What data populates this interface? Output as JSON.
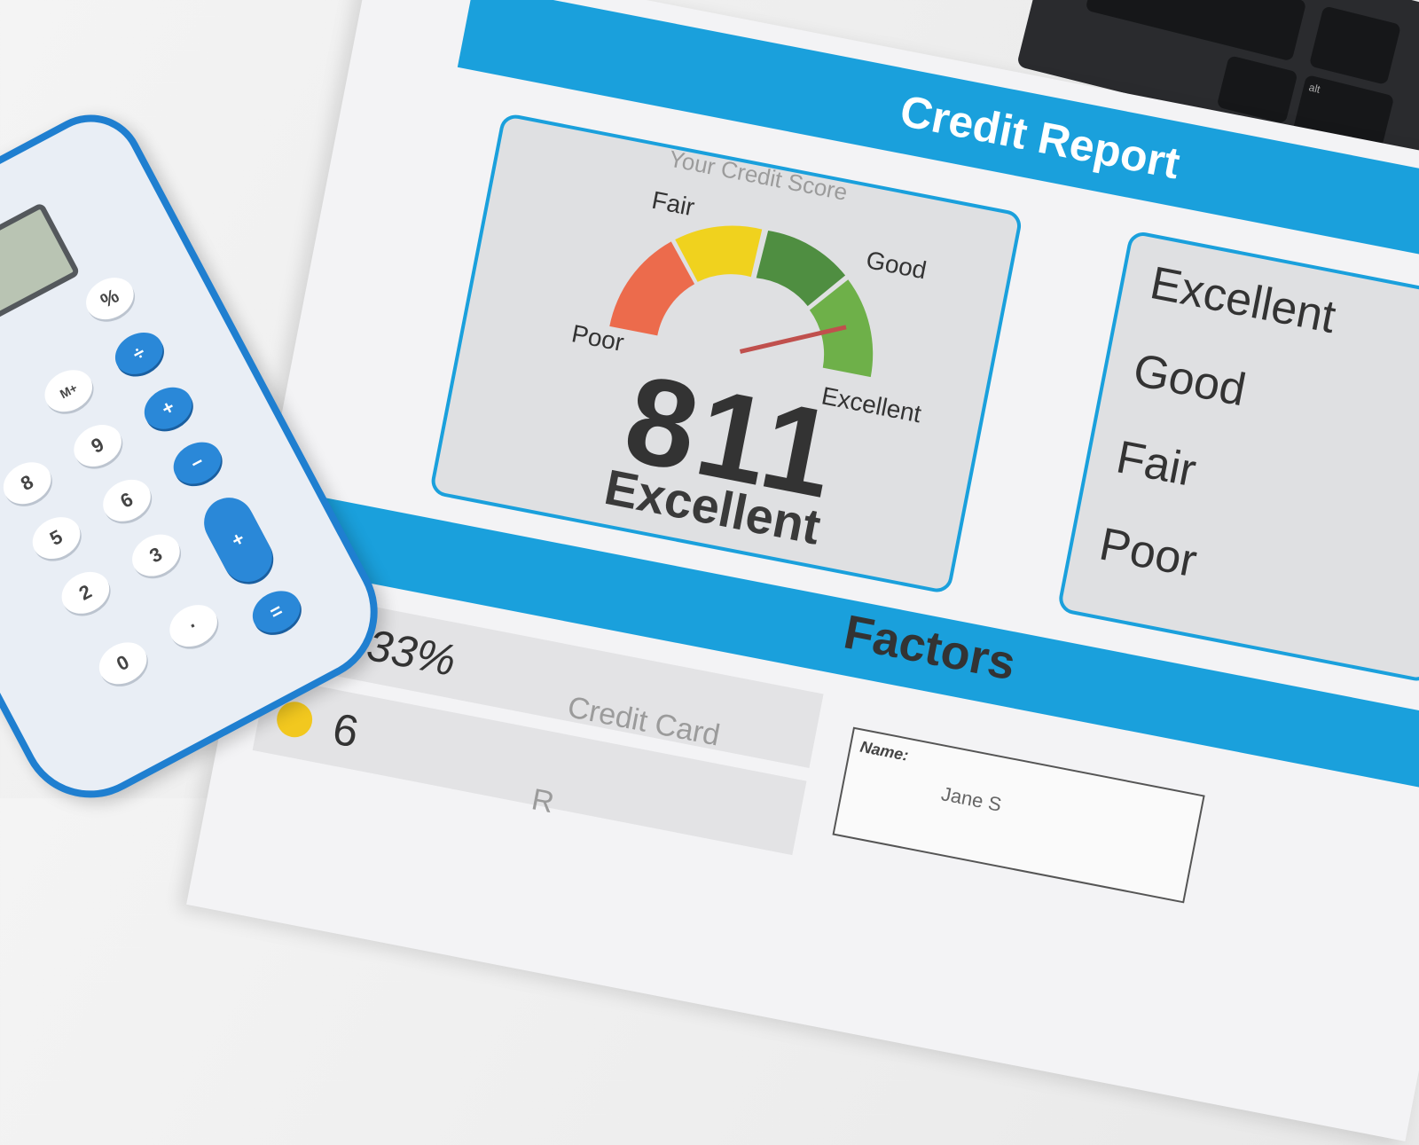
{
  "report": {
    "title": "Credit Report",
    "score_caption": "Your Credit Score",
    "score": "811",
    "rating": "Excellent",
    "gauge_labels": [
      "Poor",
      "Fair",
      "Good",
      "Excellent"
    ],
    "gauge_colors": [
      "#ec6b4c",
      "#f0d21e",
      "#4f8e41",
      "#6eb049"
    ],
    "needle_color": "#c0504d",
    "needle_level_fraction": 0.85,
    "legend": [
      "Excellent",
      "Good",
      "Fair",
      "Poor"
    ],
    "factors_title": "Factors",
    "factors": [
      {
        "dot_color": "#5b9a4a",
        "value": "33%",
        "label": "Credit Card"
      },
      {
        "dot_color": "#f2c81f",
        "value": "6",
        "label": "R"
      }
    ],
    "name_label": "Name:",
    "name_value": "Jane S"
  },
  "calculator": {
    "keys": [
      "%",
      "÷",
      "M+",
      "+",
      "9",
      "−",
      "6",
      "8",
      "5",
      "3",
      "+",
      "2",
      "=",
      "0",
      "·"
    ]
  },
  "keyboard": {
    "keys": [
      "alt"
    ]
  },
  "accent": "#1aa0dc"
}
